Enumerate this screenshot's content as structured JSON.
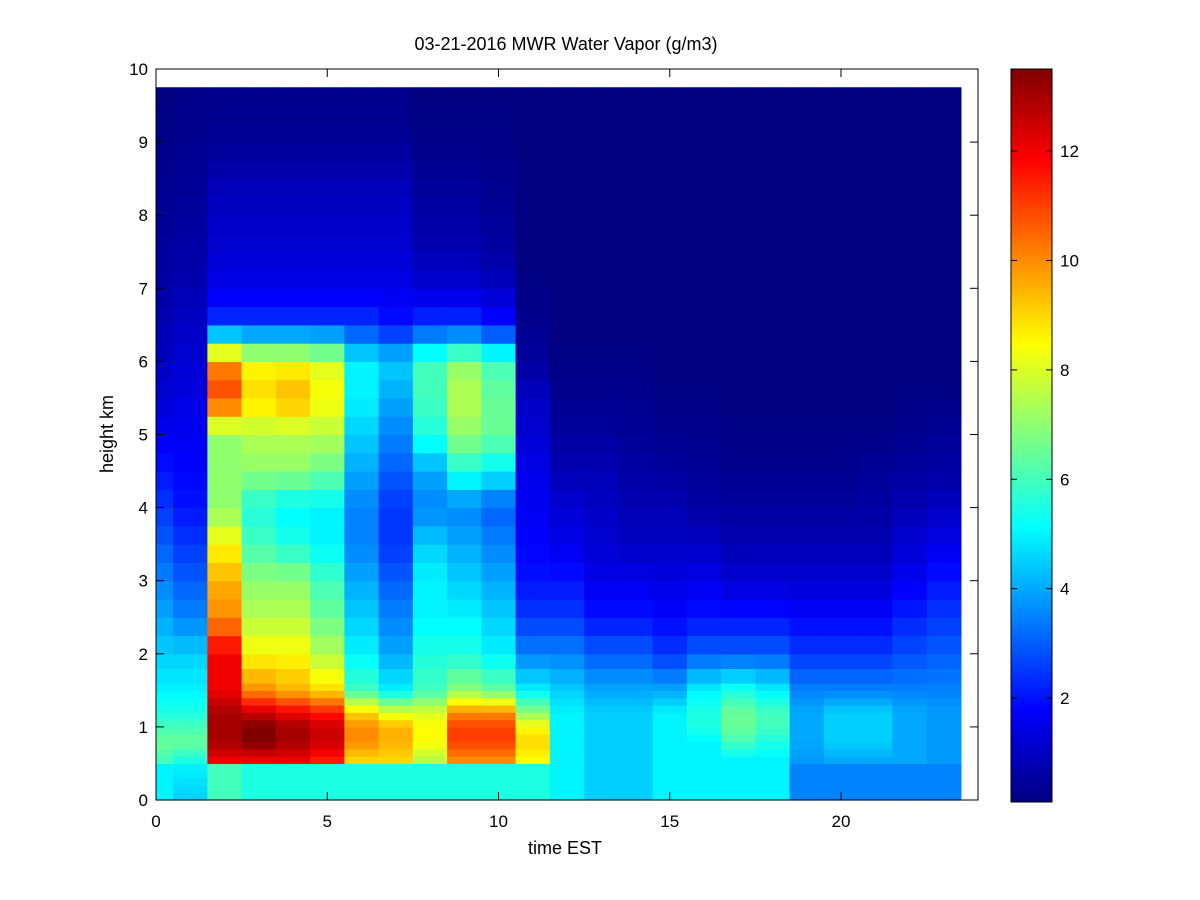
{
  "chart_data": {
    "type": "heatmap",
    "title": "03-21-2016 MWR Water Vapor (g/m3)",
    "xlabel": "time EST",
    "ylabel": "height km",
    "xlim": [
      0,
      24
    ],
    "ylim": [
      0,
      10
    ],
    "x_ticks": [
      0,
      5,
      10,
      15,
      20
    ],
    "y_ticks": [
      0,
      1,
      2,
      3,
      4,
      5,
      6,
      7,
      8,
      9,
      10
    ],
    "colorbar": {
      "colormap": "jet",
      "clim": [
        0.1,
        13.5
      ],
      "ticks": [
        2,
        4,
        6,
        8,
        10,
        12
      ]
    },
    "grid": false,
    "data_extent": {
      "x": [
        0,
        23.5
      ],
      "y": [
        0,
        9.75
      ]
    },
    "time_bins": [
      0.25,
      1,
      2,
      3,
      4,
      5,
      6,
      7,
      8,
      9,
      10,
      11,
      12,
      13,
      14,
      15,
      16,
      17,
      18,
      19,
      20,
      21,
      22,
      23
    ],
    "time_bin_edges": [
      0,
      0.5,
      1.5,
      2.5,
      3.5,
      4.5,
      5.5,
      6.5,
      7.5,
      8.5,
      9.5,
      10.5,
      11.5,
      12.5,
      13.5,
      14.5,
      15.5,
      16.5,
      17.5,
      18.5,
      19.5,
      20.5,
      21.5,
      22.5,
      23.5
    ],
    "height_km": [
      0.0,
      0.1,
      0.2,
      0.3,
      0.4,
      0.5,
      0.6,
      0.7,
      0.8,
      0.9,
      1.0,
      1.1,
      1.2,
      1.3,
      1.4,
      1.5,
      1.6,
      1.8,
      2.0,
      2.25,
      2.5,
      2.75,
      3.0,
      3.25,
      3.5,
      3.75,
      4.0,
      4.25,
      4.5,
      4.75,
      5.0,
      5.25,
      5.5,
      5.75,
      6.0,
      6.25,
      6.5,
      6.75,
      7.0,
      7.25,
      7.5,
      7.75,
      8.0,
      8.25,
      8.5,
      8.75,
      9.0,
      9.25,
      9.5,
      9.75
    ],
    "profile_heights_km": [
      0.0,
      0.5,
      0.55,
      0.8,
      1.0,
      1.2,
      1.5,
      2.0,
      2.5,
      3.0,
      3.5,
      4.0,
      4.5,
      5.0,
      5.5,
      6.0,
      6.5,
      7.0,
      7.5,
      8.0,
      8.5,
      9.0,
      9.75
    ],
    "profiles_g_m3": [
      [
        5.0,
        5.0,
        6.0,
        6.5,
        6.0,
        5.5,
        5.0,
        4.5,
        4.0,
        3.5,
        3.0,
        2.5,
        2.0,
        1.6,
        1.2,
        1.0,
        0.8,
        0.6,
        0.5,
        0.4,
        0.3,
        0.2,
        0.1
      ],
      [
        4.5,
        5.0,
        5.5,
        6.5,
        6.0,
        5.5,
        5.0,
        4.5,
        3.5,
        3.0,
        2.5,
        2.0,
        1.8,
        1.6,
        1.4,
        1.2,
        1.0,
        0.8,
        0.6,
        0.5,
        0.4,
        0.3,
        0.2
      ],
      [
        6.0,
        6.0,
        12.0,
        13.0,
        13.0,
        13.0,
        12.0,
        12.0,
        10.0,
        9.5,
        8.5,
        7.0,
        7.0,
        7.0,
        11.0,
        10.0,
        2.5,
        1.5,
        1.2,
        1.0,
        0.8,
        0.4,
        0.2
      ],
      [
        5.5,
        5.5,
        12.0,
        13.5,
        13.5,
        12.5,
        10.0,
        8.5,
        7.5,
        7.0,
        6.0,
        5.5,
        7.0,
        7.5,
        9.0,
        8.5,
        2.5,
        1.5,
        1.2,
        1.0,
        0.8,
        0.4,
        0.2
      ],
      [
        5.5,
        5.5,
        12.0,
        13.0,
        13.0,
        12.0,
        9.5,
        8.5,
        7.5,
        7.0,
        5.5,
        5.0,
        7.0,
        7.5,
        9.5,
        8.5,
        2.5,
        1.5,
        1.2,
        1.0,
        0.8,
        0.4,
        0.2
      ],
      [
        5.5,
        5.5,
        11.5,
        12.5,
        12.5,
        11.5,
        9.0,
        7.5,
        6.5,
        6.0,
        5.0,
        5.0,
        6.5,
        7.5,
        8.5,
        8.0,
        2.5,
        1.5,
        1.2,
        1.0,
        0.8,
        0.4,
        0.2
      ],
      [
        5.5,
        5.5,
        9.0,
        10.0,
        10.0,
        9.0,
        6.0,
        5.0,
        4.5,
        4.0,
        3.5,
        3.5,
        4.0,
        4.5,
        5.0,
        5.0,
        2.5,
        1.5,
        1.2,
        1.0,
        0.8,
        0.4,
        0.2
      ],
      [
        5.5,
        5.5,
        9.0,
        9.5,
        9.5,
        8.0,
        5.0,
        4.0,
        3.5,
        3.0,
        2.5,
        2.5,
        3.0,
        3.5,
        4.0,
        4.5,
        2.0,
        1.5,
        1.2,
        1.0,
        0.8,
        0.4,
        0.2
      ],
      [
        5.5,
        5.5,
        7.5,
        8.5,
        8.5,
        8.0,
        6.0,
        5.5,
        5.0,
        5.0,
        4.5,
        3.5,
        4.0,
        5.5,
        6.0,
        6.0,
        2.5,
        1.2,
        0.8,
        0.6,
        0.4,
        0.2,
        0.1
      ],
      [
        5.5,
        5.5,
        10.0,
        11.0,
        11.0,
        10.0,
        7.0,
        5.5,
        5.0,
        4.5,
        4.0,
        3.5,
        5.5,
        7.0,
        7.5,
        7.0,
        2.5,
        1.2,
        0.8,
        0.6,
        0.4,
        0.2,
        0.1
      ],
      [
        5.5,
        5.5,
        10.0,
        11.0,
        11.0,
        10.0,
        6.5,
        5.0,
        4.5,
        4.0,
        3.5,
        3.0,
        5.0,
        6.5,
        6.5,
        6.0,
        2.0,
        1.0,
        0.6,
        0.4,
        0.3,
        0.2,
        0.1
      ],
      [
        5.5,
        5.5,
        8.5,
        9.0,
        8.5,
        7.0,
        5.0,
        3.5,
        2.5,
        2.0,
        1.8,
        1.6,
        1.5,
        1.2,
        1.0,
        0.5,
        0.3,
        0.2,
        0.1,
        0.1,
        0.1,
        0.1,
        0.1
      ],
      [
        5.0,
        5.0,
        5.0,
        5.0,
        5.0,
        5.0,
        4.5,
        3.5,
        2.5,
        2.0,
        1.5,
        1.2,
        0.8,
        0.5,
        0.3,
        0.2,
        0.1,
        0.1,
        0.1,
        0.1,
        0.1,
        0.1,
        0.1
      ],
      [
        4.5,
        4.5,
        4.5,
        4.5,
        4.5,
        4.5,
        4.0,
        3.0,
        2.0,
        1.5,
        1.2,
        1.0,
        0.8,
        0.5,
        0.3,
        0.2,
        0.1,
        0.1,
        0.1,
        0.1,
        0.1,
        0.1,
        0.1
      ],
      [
        4.5,
        4.5,
        4.5,
        4.5,
        4.5,
        4.5,
        4.0,
        3.0,
        2.0,
        1.5,
        1.0,
        0.8,
        0.6,
        0.4,
        0.3,
        0.2,
        0.1,
        0.1,
        0.1,
        0.1,
        0.1,
        0.1,
        0.1
      ],
      [
        5.0,
        5.0,
        5.0,
        5.0,
        5.0,
        5.0,
        4.0,
        2.5,
        1.8,
        1.4,
        1.0,
        0.8,
        0.5,
        0.3,
        0.2,
        0.1,
        0.1,
        0.1,
        0.1,
        0.1,
        0.1,
        0.1,
        0.1
      ],
      [
        5.0,
        5.0,
        5.0,
        5.0,
        5.5,
        5.5,
        5.0,
        3.0,
        2.0,
        1.5,
        1.0,
        0.6,
        0.4,
        0.3,
        0.2,
        0.1,
        0.1,
        0.1,
        0.1,
        0.1,
        0.1,
        0.1,
        0.1
      ],
      [
        5.0,
        5.0,
        5.0,
        6.0,
        6.5,
        6.5,
        5.5,
        3.0,
        2.0,
        1.2,
        0.8,
        0.5,
        0.3,
        0.2,
        0.1,
        0.1,
        0.1,
        0.1,
        0.1,
        0.1,
        0.1,
        0.1,
        0.1
      ],
      [
        5.0,
        5.0,
        5.0,
        5.5,
        6.0,
        6.0,
        5.0,
        3.0,
        2.0,
        1.2,
        0.8,
        0.5,
        0.3,
        0.2,
        0.1,
        0.1,
        0.1,
        0.1,
        0.1,
        0.1,
        0.1,
        0.1,
        0.1
      ],
      [
        3.5,
        3.5,
        3.8,
        4.0,
        4.0,
        4.0,
        3.5,
        2.5,
        1.8,
        1.2,
        0.8,
        0.5,
        0.3,
        0.2,
        0.1,
        0.1,
        0.1,
        0.1,
        0.1,
        0.1,
        0.1,
        0.1,
        0.1
      ],
      [
        3.5,
        3.5,
        4.0,
        4.5,
        4.5,
        4.5,
        3.5,
        2.5,
        1.8,
        1.2,
        0.8,
        0.5,
        0.3,
        0.2,
        0.1,
        0.1,
        0.1,
        0.1,
        0.1,
        0.1,
        0.1,
        0.1,
        0.1
      ],
      [
        3.5,
        3.5,
        4.0,
        4.5,
        4.5,
        4.5,
        3.5,
        2.5,
        1.8,
        1.2,
        0.8,
        0.6,
        0.4,
        0.2,
        0.1,
        0.1,
        0.1,
        0.1,
        0.1,
        0.1,
        0.1,
        0.1,
        0.1
      ],
      [
        3.5,
        3.5,
        4.0,
        4.0,
        4.0,
        4.0,
        3.5,
        2.8,
        2.2,
        1.6,
        1.2,
        0.8,
        0.5,
        0.3,
        0.2,
        0.1,
        0.1,
        0.1,
        0.1,
        0.1,
        0.1,
        0.1,
        0.1
      ],
      [
        3.5,
        3.5,
        3.8,
        3.8,
        3.8,
        3.8,
        3.5,
        3.0,
        2.5,
        2.0,
        1.5,
        1.0,
        0.6,
        0.4,
        0.2,
        0.1,
        0.1,
        0.1,
        0.1,
        0.1,
        0.1,
        0.1,
        0.1
      ]
    ]
  }
}
